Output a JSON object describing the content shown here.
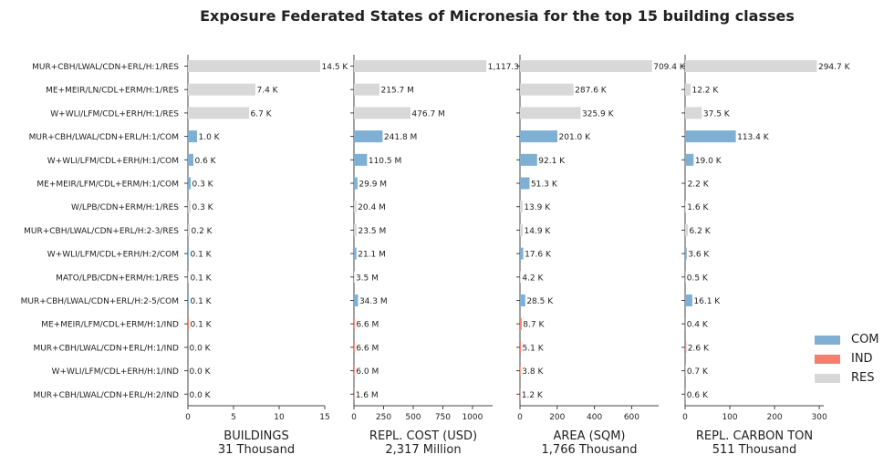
{
  "title": "Exposure Federated States of Micronesia for the top 15 building classes",
  "colors": {
    "COM": "#7fafd2",
    "IND": "#f47f6e",
    "RES": "#d8d8d8"
  },
  "legend": [
    {
      "label": "COM",
      "color": "#7fafd2"
    },
    {
      "label": "IND",
      "color": "#f47f6e"
    },
    {
      "label": "RES",
      "color": "#d8d8d8"
    }
  ],
  "chart_data": {
    "type": "bar",
    "orientation": "horizontal",
    "categories": [
      "MUR+CBH/LWAL/CDN+ERL/H:1/RES",
      "ME+MEIR/LN/CDL+ERM/H:1/RES",
      "W+WLI/LFM/CDL+ERH/H:1/RES",
      "MUR+CBH/LWAL/CDN+ERL/H:1/COM",
      "W+WLI/LFM/CDL+ERH/H:1/COM",
      "ME+MEIR/LFM/CDL+ERM/H:1/COM",
      "W/LPB/CDN+ERM/H:1/RES",
      "MUR+CBH/LWAL/CDN+ERL/H:2-3/RES",
      "W+WLI/LFM/CDL+ERH/H:2/COM",
      "MATO/LPB/CDN+ERM/H:1/RES",
      "MUR+CBH/LWAL/CDN+ERL/H:2-5/COM",
      "ME+MEIR/LFM/CDL+ERM/H:1/IND",
      "MUR+CBH/LWAL/CDN+ERL/H:1/IND",
      "W+WLI/LFM/CDL+ERH/H:1/IND",
      "MUR+CBH/LWAL/CDN+ERL/H:2/IND"
    ],
    "occupancy": [
      "RES",
      "RES",
      "RES",
      "COM",
      "COM",
      "COM",
      "RES",
      "RES",
      "COM",
      "RES",
      "COM",
      "IND",
      "IND",
      "IND",
      "IND"
    ],
    "panels": [
      {
        "xlabel": "BUILDINGS",
        "total": "31 Thousand",
        "xlim": [
          0,
          15
        ],
        "ticks": [
          0,
          5,
          10,
          15
        ],
        "tick_labels": [
          "0",
          "5",
          "10",
          "15"
        ],
        "values": [
          14.5,
          7.4,
          6.7,
          1.0,
          0.6,
          0.3,
          0.3,
          0.2,
          0.1,
          0.1,
          0.1,
          0.1,
          0.0,
          0.0,
          0.0
        ],
        "labels": [
          "14.5 K",
          "7.4 K",
          "6.7 K",
          "1.0 K",
          "0.6 K",
          "0.3 K",
          "0.3 K",
          "0.2 K",
          "0.1 K",
          "0.1 K",
          "0.1 K",
          "0.1 K",
          "0.0 K",
          "0.0 K",
          "0.0 K"
        ]
      },
      {
        "xlabel": "REPL. COST (USD)",
        "total": "2,317 Million",
        "xlim": [
          0,
          1170
        ],
        "ticks": [
          0,
          250,
          500,
          750,
          1000
        ],
        "tick_labels": [
          "0",
          "250",
          "500",
          "750",
          "1000"
        ],
        "values": [
          1117.3,
          215.7,
          476.7,
          241.8,
          110.5,
          29.9,
          20.4,
          23.5,
          21.1,
          3.5,
          34.3,
          6.6,
          6.6,
          6.0,
          1.6
        ],
        "labels": [
          "1,117.3",
          "215.7 M",
          "476.7 M",
          "241.8 M",
          "110.5 M",
          "29.9 M",
          "20.4 M",
          "23.5 M",
          "21.1 M",
          "3.5 M",
          "34.3 M",
          "6.6 M",
          "6.6 M",
          "6.0 M",
          "1.6 M"
        ]
      },
      {
        "xlabel": "AREA (SQM)",
        "total": "1,766 Thousand",
        "xlim": [
          0,
          745
        ],
        "ticks": [
          0,
          200,
          400,
          600
        ],
        "tick_labels": [
          "0",
          "200",
          "400",
          "600"
        ],
        "values": [
          709.4,
          287.6,
          325.9,
          201.0,
          92.1,
          51.3,
          13.9,
          14.9,
          17.6,
          4.2,
          28.5,
          8.7,
          5.1,
          3.8,
          1.2
        ],
        "labels": [
          "709.4 K",
          "287.6 K",
          "325.9 K",
          "201.0 K",
          "92.1 K",
          "51.3 K",
          "13.9 K",
          "14.9 K",
          "17.6 K",
          "4.2 K",
          "28.5 K",
          "8.7 K",
          "5.1 K",
          "3.8 K",
          "1.2 K"
        ]
      },
      {
        "xlabel": "REPL. CARBON TON",
        "total": "511 Thousand",
        "xlim": [
          0,
          310
        ],
        "ticks": [
          0,
          100,
          200,
          300
        ],
        "tick_labels": [
          "0",
          "100",
          "200",
          "300"
        ],
        "values": [
          294.7,
          12.2,
          37.5,
          113.4,
          19.0,
          2.2,
          1.6,
          6.2,
          3.6,
          0.5,
          16.1,
          0.4,
          2.6,
          0.7,
          0.6
        ],
        "labels": [
          "294.7 K",
          "12.2 K",
          "37.5 K",
          "113.4 K",
          "19.0 K",
          "2.2 K",
          "1.6 K",
          "6.2 K",
          "3.6 K",
          "0.5 K",
          "16.1 K",
          "0.4 K",
          "2.6 K",
          "0.7 K",
          "0.6 K"
        ]
      }
    ]
  }
}
